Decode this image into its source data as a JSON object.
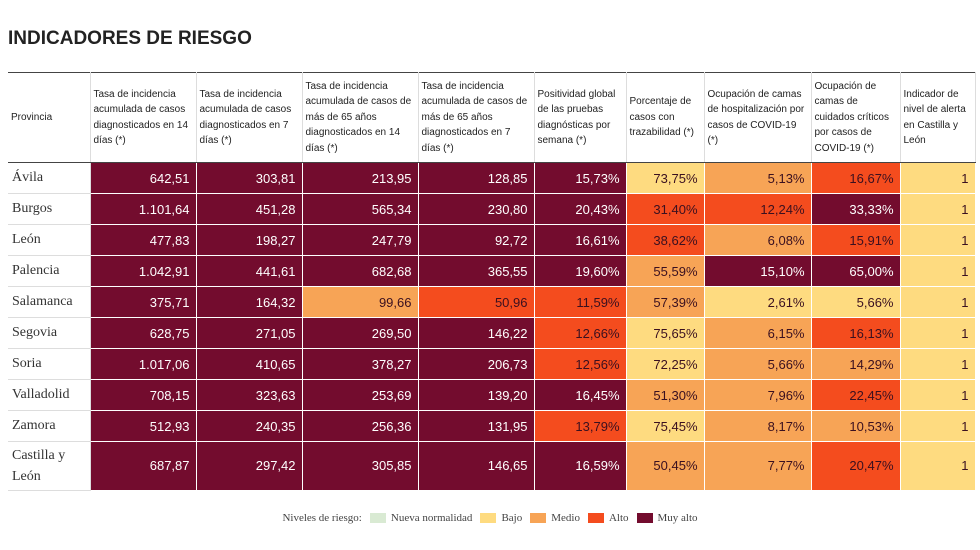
{
  "title": "INDICADORES DE RIESGO",
  "table": {
    "headers": [
      "Provincia",
      "Tasa de incidencia acumulada de casos diagnosticados en 14 días (*)",
      "Tasa de incidencia acumulada de casos diagnosticados en 7 días (*)",
      "Tasa de incidencia acumulada de casos de más de 65 años diagnosticados en 14 días (*)",
      "Tasa de incidencia acumulada de casos de más de 65 años diagnosticados en 7 días (*)",
      "Positividad global de las pruebas diagnósticas por semana (*)",
      "Porcentaje de casos con trazabilidad (*)",
      "Ocupación de camas de hospitalización por casos de COVID-19 (*)",
      "Ocupación de camas de cuidados críticos por casos de COVID-19 (*)",
      "Indicador de nivel de alerta en Castilla y León"
    ],
    "rows": [
      {
        "province": "Ávila",
        "values": [
          "642,51",
          "303,81",
          "213,95",
          "128,85",
          "15,73%",
          "73,75%",
          "5,13%",
          "16,67%",
          "1"
        ],
        "fills": [
          "#730c2e",
          "#730c2e",
          "#730c2e",
          "#730c2e",
          "#730c2e",
          "#fedb80",
          "#f7a456",
          "#f44c1e",
          "#fedb80"
        ]
      },
      {
        "province": "Burgos",
        "values": [
          "1.101,64",
          "451,28",
          "565,34",
          "230,80",
          "20,43%",
          "31,40%",
          "12,24%",
          "33,33%",
          "1"
        ],
        "fills": [
          "#730c2e",
          "#730c2e",
          "#730c2e",
          "#730c2e",
          "#730c2e",
          "#f44c1e",
          "#f44c1e",
          "#730c2e",
          "#fedb80"
        ]
      },
      {
        "province": "León",
        "values": [
          "477,83",
          "198,27",
          "247,79",
          "92,72",
          "16,61%",
          "38,62%",
          "6,08%",
          "15,91%",
          "1"
        ],
        "fills": [
          "#730c2e",
          "#730c2e",
          "#730c2e",
          "#730c2e",
          "#730c2e",
          "#f44c1e",
          "#f7a456",
          "#f44c1e",
          "#fedb80"
        ]
      },
      {
        "province": "Palencia",
        "values": [
          "1.042,91",
          "441,61",
          "682,68",
          "365,55",
          "19,60%",
          "55,59%",
          "15,10%",
          "65,00%",
          "1"
        ],
        "fills": [
          "#730c2e",
          "#730c2e",
          "#730c2e",
          "#730c2e",
          "#730c2e",
          "#f7a456",
          "#730c2e",
          "#730c2e",
          "#fedb80"
        ]
      },
      {
        "province": "Salamanca",
        "values": [
          "375,71",
          "164,32",
          "99,66",
          "50,96",
          "11,59%",
          "57,39%",
          "2,61%",
          "5,66%",
          "1"
        ],
        "fills": [
          "#730c2e",
          "#730c2e",
          "#f7a456",
          "#f44c1e",
          "#f44c1e",
          "#f7a456",
          "#fedb80",
          "#fedb80",
          "#fedb80"
        ]
      },
      {
        "province": "Segovia",
        "values": [
          "628,75",
          "271,05",
          "269,50",
          "146,22",
          "12,66%",
          "75,65%",
          "6,15%",
          "16,13%",
          "1"
        ],
        "fills": [
          "#730c2e",
          "#730c2e",
          "#730c2e",
          "#730c2e",
          "#f44c1e",
          "#fedb80",
          "#f7a456",
          "#f44c1e",
          "#fedb80"
        ]
      },
      {
        "province": "Soria",
        "values": [
          "1.017,06",
          "410,65",
          "378,27",
          "206,73",
          "12,56%",
          "72,25%",
          "5,66%",
          "14,29%",
          "1"
        ],
        "fills": [
          "#730c2e",
          "#730c2e",
          "#730c2e",
          "#730c2e",
          "#f44c1e",
          "#fedb80",
          "#f7a456",
          "#f7a456",
          "#fedb80"
        ]
      },
      {
        "province": "Valladolid",
        "values": [
          "708,15",
          "323,63",
          "253,69",
          "139,20",
          "16,45%",
          "51,30%",
          "7,96%",
          "22,45%",
          "1"
        ],
        "fills": [
          "#730c2e",
          "#730c2e",
          "#730c2e",
          "#730c2e",
          "#730c2e",
          "#f7a456",
          "#f7a456",
          "#f44c1e",
          "#fedb80"
        ]
      },
      {
        "province": "Zamora",
        "values": [
          "512,93",
          "240,35",
          "256,36",
          "131,95",
          "13,79%",
          "75,45%",
          "8,17%",
          "10,53%",
          "1"
        ],
        "fills": [
          "#730c2e",
          "#730c2e",
          "#730c2e",
          "#730c2e",
          "#f44c1e",
          "#fedb80",
          "#f7a456",
          "#f7a456",
          "#fedb80"
        ]
      },
      {
        "province": "Castilla y León",
        "values": [
          "687,87",
          "297,42",
          "305,85",
          "146,65",
          "16,59%",
          "50,45%",
          "7,77%",
          "20,47%",
          "1"
        ],
        "fills": [
          "#730c2e",
          "#730c2e",
          "#730c2e",
          "#730c2e",
          "#730c2e",
          "#f7a456",
          "#f7a456",
          "#f44c1e",
          "#fedb80"
        ]
      }
    ]
  },
  "legend": {
    "title": "Niveles de riesgo:",
    "items": [
      {
        "name": "Nueva normalidad",
        "color": "#d9ead3"
      },
      {
        "name": "Bajo",
        "color": "#fedb80"
      },
      {
        "name": "Medio",
        "color": "#f7a456"
      },
      {
        "name": "Alto",
        "color": "#f44c1e"
      },
      {
        "name": "Muy alto",
        "color": "#730c2e"
      }
    ]
  }
}
